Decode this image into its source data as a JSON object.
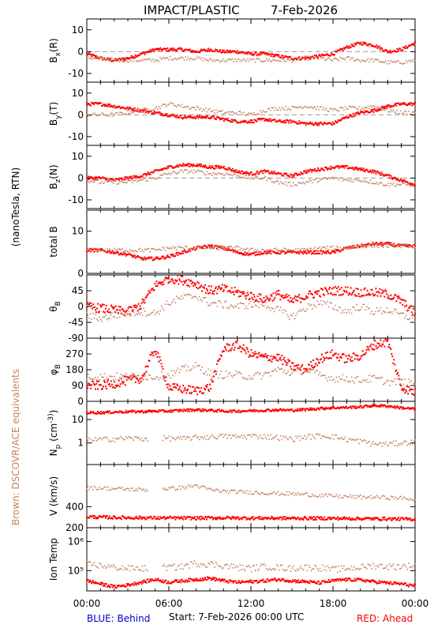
{
  "header": {
    "instrument": "IMPACT/PLASTIC",
    "date": "7-Feb-2026"
  },
  "side_labels": {
    "units": "(nanoTesla, RTN)",
    "brown_note": "Brown: DSCOVR/ACE equivalents"
  },
  "footer": {
    "blue": "BLUE: Behind",
    "start": "Start:   7-Feb-2026 00:00 UTC",
    "red": "RED: Ahead"
  },
  "colors": {
    "red": "#ff0000",
    "brown": "#c48466",
    "blue": "#0000cc",
    "axis": "#000000",
    "dash": "#999999"
  },
  "chart_data": [
    {
      "type": "scatter",
      "ylabel": "B_x(R)",
      "ylim": [
        -14,
        15
      ],
      "yticks": [
        -10,
        0,
        10
      ],
      "zero_line": true,
      "x": [
        0,
        1,
        2,
        3,
        4,
        5,
        6,
        7,
        8,
        9,
        10,
        11,
        12,
        13,
        14,
        15,
        16,
        17,
        18,
        19,
        20,
        21,
        22,
        23,
        24
      ],
      "series": [
        {
          "name": "",
          "color": "red",
          "values": [
            -1,
            -3,
            -4,
            -3,
            -1,
            1,
            1,
            1,
            0,
            1,
            0,
            0,
            -1,
            -1,
            -2,
            -3,
            -3,
            -2,
            -1,
            2,
            4,
            3,
            0,
            1,
            4
          ]
        },
        {
          "name": "",
          "color": "brown",
          "values": [
            -3,
            -3,
            -4,
            -4,
            -4,
            -4,
            -3,
            -3,
            -3,
            -4,
            -4,
            -4,
            -4,
            -4,
            -4,
            -4,
            -3,
            -3,
            -4,
            -3,
            -4,
            -4,
            -5,
            -5,
            -4
          ]
        }
      ]
    },
    {
      "type": "scatter",
      "ylabel": "B_y(T)",
      "ylim": [
        -14,
        15
      ],
      "yticks": [
        -10,
        0,
        10
      ],
      "zero_line": true,
      "x": [
        0,
        1,
        2,
        3,
        4,
        5,
        6,
        7,
        8,
        9,
        10,
        11,
        12,
        13,
        14,
        15,
        16,
        17,
        18,
        19,
        20,
        21,
        22,
        23,
        24
      ],
      "series": [
        {
          "name": "",
          "color": "red",
          "values": [
            5,
            5,
            4,
            3,
            2,
            1,
            0,
            -1,
            -1,
            -1,
            -2,
            -3,
            -3,
            -2,
            -3,
            -3,
            -4,
            -4,
            -4,
            -1,
            1,
            2,
            4,
            5,
            5
          ]
        },
        {
          "name": "",
          "color": "brown",
          "values": [
            0,
            0,
            0,
            1,
            2,
            3,
            5,
            4,
            3,
            2,
            1,
            1,
            0,
            2,
            3,
            3,
            4,
            3,
            2,
            3,
            3,
            4,
            2,
            1,
            1
          ]
        }
      ]
    },
    {
      "type": "scatter",
      "ylabel": "B_z(N)",
      "ylim": [
        -14,
        15
      ],
      "yticks": [
        -10,
        0,
        10
      ],
      "zero_line": true,
      "x": [
        0,
        1,
        2,
        3,
        4,
        5,
        6,
        7,
        8,
        9,
        10,
        11,
        12,
        13,
        14,
        15,
        16,
        17,
        18,
        19,
        20,
        21,
        22,
        23,
        24
      ],
      "series": [
        {
          "name": "",
          "color": "red",
          "values": [
            0,
            0,
            -1,
            0,
            1,
            3,
            5,
            6,
            6,
            5,
            5,
            3,
            2,
            3,
            2,
            1,
            3,
            4,
            5,
            5,
            4,
            3,
            1,
            -1,
            -3
          ]
        },
        {
          "name": "",
          "color": "brown",
          "values": [
            -1,
            -2,
            -2,
            -2,
            -1,
            0,
            2,
            3,
            3,
            2,
            2,
            1,
            0,
            0,
            -2,
            -3,
            -2,
            -1,
            0,
            -1,
            -1,
            -2,
            -3,
            -3,
            -3
          ]
        }
      ]
    },
    {
      "type": "scatter",
      "ylabel": "total B",
      "ylim": [
        0,
        15
      ],
      "yticks": [
        0,
        10
      ],
      "x": [
        0,
        1,
        2,
        3,
        4,
        5,
        6,
        7,
        8,
        9,
        10,
        11,
        12,
        13,
        14,
        15,
        16,
        17,
        18,
        19,
        20,
        21,
        22,
        23,
        24
      ],
      "series": [
        {
          "name": "",
          "color": "red",
          "values": [
            5.5,
            5.5,
            5,
            4.5,
            3.5,
            3.5,
            4,
            5,
            6,
            6.5,
            6,
            5,
            4.5,
            5,
            5,
            5,
            5,
            5,
            5,
            6,
            6.5,
            7,
            7,
            6.5,
            6.5
          ]
        },
        {
          "name": "",
          "color": "brown",
          "values": [
            5.5,
            5.5,
            5.5,
            5.5,
            5.5,
            5.5,
            6,
            6,
            6,
            6,
            6,
            6,
            5.5,
            5.5,
            5.5,
            5.5,
            5.5,
            6,
            6,
            6,
            6.5,
            6.5,
            6.5,
            6.5,
            6.5
          ]
        }
      ]
    },
    {
      "type": "scatter",
      "ylabel": "θ_B",
      "ylim": [
        -90,
        90
      ],
      "yticks": [
        -90,
        -45,
        0,
        45
      ],
      "x": [
        0,
        1,
        2,
        3,
        4,
        5,
        6,
        7,
        8,
        9,
        10,
        11,
        12,
        13,
        14,
        15,
        16,
        17,
        18,
        19,
        20,
        21,
        22,
        23,
        24
      ],
      "series": [
        {
          "name": "",
          "color": "red",
          "values": [
            0,
            -5,
            -10,
            -15,
            5,
            60,
            80,
            75,
            65,
            45,
            50,
            40,
            30,
            20,
            35,
            15,
            30,
            40,
            45,
            45,
            40,
            40,
            35,
            15,
            -20
          ]
        },
        {
          "name": "",
          "color": "brown",
          "values": [
            -25,
            -35,
            -25,
            -20,
            -15,
            -20,
            10,
            25,
            30,
            10,
            5,
            0,
            5,
            5,
            -10,
            -30,
            -5,
            10,
            0,
            -15,
            0,
            -15,
            -10,
            -25,
            -35
          ]
        }
      ]
    },
    {
      "type": "scatter",
      "ylabel": "φ_B",
      "ylim": [
        0,
        360
      ],
      "yticks": [
        0,
        90,
        180,
        270
      ],
      "x": [
        0,
        1,
        2,
        3,
        4,
        5,
        6,
        7,
        8,
        9,
        10,
        11,
        12,
        13,
        14,
        15,
        16,
        17,
        18,
        19,
        20,
        21,
        22,
        23,
        24
      ],
      "series": [
        {
          "name": "",
          "color": "red",
          "values": [
            90,
            90,
            100,
            120,
            130,
            300,
            80,
            70,
            60,
            80,
            300,
            320,
            270,
            250,
            250,
            200,
            180,
            240,
            270,
            240,
            260,
            320,
            340,
            80,
            50
          ]
        },
        {
          "name": "",
          "color": "brown",
          "values": [
            140,
            140,
            140,
            140,
            140,
            140,
            150,
            180,
            200,
            160,
            150,
            150,
            140,
            150,
            180,
            160,
            180,
            150,
            130,
            130,
            120,
            130,
            110,
            110,
            100
          ]
        }
      ]
    },
    {
      "type": "scatter",
      "ylabel": "N_p (cm^-3)",
      "ylog": true,
      "ylim": [
        0.12,
        60
      ],
      "yticks": [
        1,
        10
      ],
      "x": [
        0,
        1,
        2,
        3,
        4,
        5,
        6,
        7,
        8,
        9,
        10,
        11,
        12,
        13,
        14,
        15,
        16,
        17,
        18,
        19,
        20,
        21,
        22,
        23,
        24
      ],
      "series": [
        {
          "name": "",
          "color": "red",
          "values": [
            20,
            20,
            21,
            22,
            22,
            23,
            23,
            25,
            26,
            25,
            23,
            23,
            24,
            25,
            26,
            25,
            27,
            30,
            32,
            33,
            35,
            40,
            38,
            32,
            28
          ]
        },
        {
          "name": "",
          "color": "brown",
          "values": [
            1.3,
            1.4,
            1.5,
            1.6,
            1.5,
            null,
            1.6,
            1.5,
            1.7,
            1.8,
            2,
            1.8,
            2,
            1.9,
            1.7,
            1.5,
            1.8,
            2,
            1.9,
            1.4,
            1.2,
            0.9,
            0.9,
            1,
            1.1
          ]
        }
      ]
    },
    {
      "type": "scatter",
      "ylabel": "V (km/s)",
      "ylim": [
        200,
        800
      ],
      "yticks": [
        200,
        400
      ],
      "x": [
        0,
        1,
        2,
        3,
        4,
        5,
        6,
        7,
        8,
        9,
        10,
        11,
        12,
        13,
        14,
        15,
        16,
        17,
        18,
        19,
        20,
        21,
        22,
        23,
        24
      ],
      "series": [
        {
          "name": "",
          "color": "red",
          "values": [
            305,
            300,
            298,
            296,
            295,
            294,
            293,
            292,
            292,
            293,
            294,
            293,
            292,
            292,
            291,
            290,
            290,
            290,
            289,
            288,
            287,
            286,
            285,
            283,
            280
          ]
        },
        {
          "name": "",
          "color": "brown",
          "values": [
            580,
            575,
            570,
            565,
            560,
            null,
            570,
            580,
            600,
            560,
            545,
            540,
            535,
            530,
            525,
            520,
            515,
            505,
            500,
            495,
            490,
            490,
            485,
            480,
            470
          ]
        }
      ]
    },
    {
      "type": "scatter",
      "ylabel": "Ion Temp",
      "ylog": true,
      "ylim": [
        20000,
        3000000
      ],
      "yticks": [
        100000,
        1000000
      ],
      "ytick_labels": [
        "10⁵",
        "10⁶"
      ],
      "x": [
        0,
        1,
        2,
        3,
        4,
        5,
        6,
        7,
        8,
        9,
        10,
        11,
        12,
        13,
        14,
        15,
        16,
        17,
        18,
        19,
        20,
        21,
        22,
        23,
        24
      ],
      "series": [
        {
          "name": "",
          "color": "red",
          "values": [
            45000,
            35000,
            28000,
            32000,
            40000,
            50000,
            40000,
            45000,
            50000,
            55000,
            45000,
            40000,
            42000,
            45000,
            50000,
            45000,
            42000,
            38000,
            45000,
            50000,
            48000,
            42000,
            38000,
            35000,
            30000
          ]
        },
        {
          "name": "",
          "color": "brown",
          "values": [
            170000,
            150000,
            130000,
            120000,
            120000,
            null,
            130000,
            140000,
            180000,
            170000,
            150000,
            130000,
            120000,
            140000,
            130000,
            120000,
            130000,
            130000,
            110000,
            120000,
            130000,
            150000,
            140000,
            140000,
            150000
          ]
        }
      ]
    }
  ],
  "x_axis": {
    "labels": [
      "00:00",
      "06:00",
      "12:00",
      "18:00",
      "00:00"
    ]
  }
}
